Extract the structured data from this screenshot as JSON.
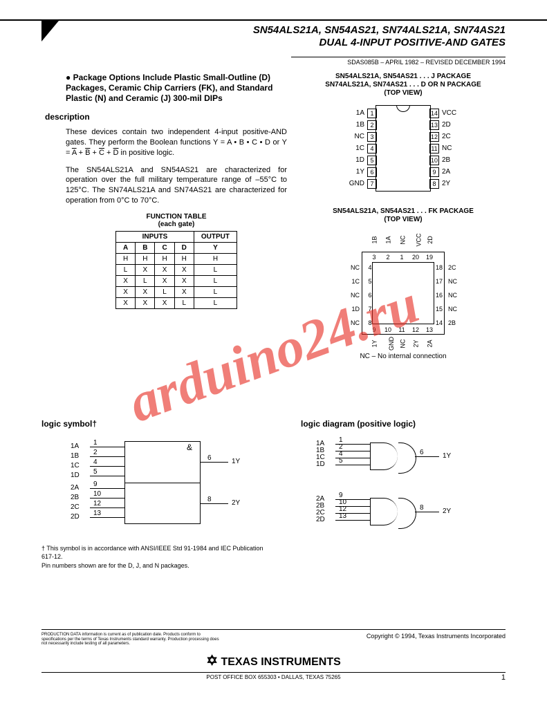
{
  "header": {
    "line1": "SN54ALS21A, SN54AS21, SN74ALS21A, SN74AS21",
    "line2": "DUAL 4-INPUT POSITIVE-AND GATES",
    "docinfo": "SDAS085B – APRIL 1982 – REVISED DECEMBER 1994"
  },
  "bullet": "Package Options Include Plastic Small-Outline (D) Packages, Ceramic Chip Carriers (FK), and Standard Plastic (N) and Ceramic (J) 300-mil DIPs",
  "description_h": "description",
  "para1a": "These devices contain two independent 4-input positive-AND gates. They perform the Boolean functions Y = A • B • C • D or Y = ",
  "para1b": " in positive logic.",
  "overA": "A",
  "overB": "B",
  "overC": "C",
  "overD": "D",
  "para2": "The SN54ALS21A and SN54AS21 are characterized for operation over the full military temperature range of –55°C to 125°C. The SN74ALS21A and SN74AS21 are characterized for operation from 0°C to 70°C.",
  "ftable": {
    "title1": "FUNCTION TABLE",
    "title2": "(each gate)",
    "h_inputs": "INPUTS",
    "h_output": "OUTPUT",
    "cols": [
      "A",
      "B",
      "C",
      "D",
      "Y"
    ],
    "rows": [
      [
        "H",
        "H",
        "H",
        "H",
        "H"
      ],
      [
        "L",
        "X",
        "X",
        "X",
        "L"
      ],
      [
        "X",
        "L",
        "X",
        "X",
        "L"
      ],
      [
        "X",
        "X",
        "L",
        "X",
        "L"
      ],
      [
        "X",
        "X",
        "X",
        "L",
        "L"
      ]
    ]
  },
  "dip": {
    "title1": "SN54ALS21A, SN54AS21 . . . J PACKAGE",
    "title2": "SN74ALS21A, SN74AS21 . . . D OR N PACKAGE",
    "title3": "(TOP VIEW)",
    "left": [
      "1A",
      "1B",
      "NC",
      "1C",
      "1D",
      "1Y",
      "GND"
    ],
    "right": [
      "VCC",
      "2D",
      "2C",
      "NC",
      "2B",
      "2A",
      "2Y"
    ],
    "nums_left": [
      "1",
      "2",
      "3",
      "4",
      "5",
      "6",
      "7"
    ],
    "nums_right": [
      "14",
      "13",
      "12",
      "11",
      "10",
      "9",
      "8"
    ]
  },
  "fk": {
    "title1": "SN54ALS21A, SN54AS21 . . . FK PACKAGE",
    "title2": "(TOP VIEW)",
    "top_labels": [
      "1B",
      "1A",
      "NC",
      "VCC",
      "2D"
    ],
    "top_nums": [
      "3",
      "2",
      "1",
      "20",
      "19"
    ],
    "left_labels": [
      "NC",
      "1C",
      "NC",
      "1D",
      "NC"
    ],
    "left_nums": [
      "4",
      "5",
      "6",
      "7",
      "8"
    ],
    "right_labels": [
      "2C",
      "NC",
      "NC",
      "NC",
      "2B"
    ],
    "right_nums": [
      "18",
      "17",
      "16",
      "15",
      "14"
    ],
    "bot_labels": [
      "1Y",
      "GND",
      "NC",
      "2Y",
      "2A"
    ],
    "bot_nums": [
      "9",
      "10",
      "11",
      "12",
      "13"
    ]
  },
  "nc_note": "NC – No internal connection",
  "logic_symbol_h": "logic symbol†",
  "logic_diagram_h": "logic diagram (positive logic)",
  "sym": {
    "left1": [
      "1A",
      "1B",
      "1C",
      "1D"
    ],
    "pins1": [
      "1",
      "2",
      "4",
      "5"
    ],
    "out1": "1Y",
    "out1_pin": "6",
    "left2": [
      "2A",
      "2B",
      "2C",
      "2D"
    ],
    "pins2": [
      "9",
      "10",
      "12",
      "13"
    ],
    "out2": "2Y",
    "out2_pin": "8"
  },
  "footnote1": "† This symbol is in accordance with ANSI/IEEE Std 91-1984 and IEC Publication 617-12.",
  "footnote2": "Pin numbers shown are for the D, J, and N packages.",
  "footer": {
    "prod_data": "PRODUCTION DATA information is current as of publication date. Products conform to specifications per the terms of Texas Instruments standard warranty. Production processing does not necessarily include testing of all parameters.",
    "copyright": "Copyright © 1994, Texas Instruments Incorporated",
    "logo": "TEXAS INSTRUMENTS",
    "addr": "POST OFFICE BOX 655303 • DALLAS, TEXAS 75265",
    "page": "1"
  },
  "watermark": "arduino24.ru",
  "colors": {
    "watermark": "rgba(230,40,30,0.6)",
    "text": "#000000",
    "bg": "#ffffff"
  }
}
